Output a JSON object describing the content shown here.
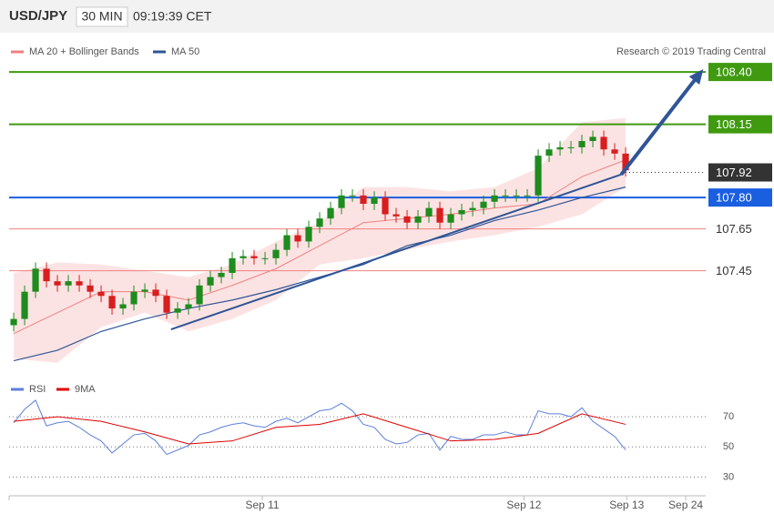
{
  "header": {
    "symbol": "USD/JPY",
    "interval": "30 MIN",
    "time": "09:19:39 CET"
  },
  "chart_data": [
    {
      "type": "candlestick",
      "source": "Research © 2019 Trading Central",
      "up_color": "#1e8c1e",
      "down_color": "#d81e1e",
      "x": [
        0,
        1,
        2,
        3,
        4,
        5,
        6,
        7,
        8,
        9,
        10,
        11,
        12,
        13,
        14,
        15,
        16,
        17,
        18,
        19,
        20,
        21,
        22,
        23,
        24,
        25,
        26,
        27,
        28,
        29,
        30,
        31,
        32,
        33,
        34,
        35,
        36,
        37,
        38,
        39,
        40,
        41,
        42,
        43,
        44,
        45,
        46,
        47,
        48,
        49,
        50,
        51,
        52,
        53,
        54,
        55,
        56
      ],
      "open": [
        107.19,
        107.22,
        107.35,
        107.46,
        107.4,
        107.38,
        107.4,
        107.38,
        107.35,
        107.33,
        107.27,
        107.29,
        107.35,
        107.36,
        107.33,
        107.25,
        107.27,
        107.29,
        107.38,
        107.42,
        107.44,
        107.51,
        107.52,
        107.51,
        107.51,
        107.55,
        107.62,
        107.59,
        107.66,
        107.7,
        107.75,
        107.81,
        107.81,
        107.77,
        107.8,
        107.72,
        107.71,
        107.68,
        107.71,
        107.75,
        107.68,
        107.72,
        107.74,
        107.75,
        107.78,
        107.81,
        107.81,
        107.81,
        107.81,
        108.0,
        108.03,
        108.04,
        108.04,
        108.07,
        108.09,
        108.03,
        108.01
      ],
      "high": [
        107.25,
        107.38,
        107.49,
        107.49,
        107.43,
        107.43,
        107.43,
        107.41,
        107.38,
        107.36,
        107.32,
        107.38,
        107.39,
        107.39,
        107.36,
        107.3,
        107.32,
        107.41,
        107.45,
        107.47,
        107.54,
        107.55,
        107.55,
        107.54,
        107.58,
        107.65,
        107.65,
        107.69,
        107.73,
        107.78,
        107.84,
        107.84,
        107.84,
        107.83,
        107.83,
        107.75,
        107.74,
        107.74,
        107.78,
        107.78,
        107.75,
        107.77,
        107.78,
        107.81,
        107.84,
        107.84,
        107.84,
        107.84,
        108.03,
        108.06,
        108.07,
        108.07,
        108.1,
        108.12,
        108.12,
        108.06,
        108.04
      ],
      "low": [
        107.16,
        107.19,
        107.32,
        107.37,
        107.35,
        107.35,
        107.35,
        107.32,
        107.3,
        107.24,
        107.24,
        107.26,
        107.32,
        107.3,
        107.22,
        107.22,
        107.24,
        107.26,
        107.35,
        107.39,
        107.41,
        107.48,
        107.48,
        107.48,
        107.48,
        107.52,
        107.56,
        107.56,
        107.63,
        107.67,
        107.72,
        107.78,
        107.74,
        107.74,
        107.69,
        107.68,
        107.65,
        107.65,
        107.68,
        107.65,
        107.65,
        107.69,
        107.71,
        107.72,
        107.75,
        107.78,
        107.78,
        107.78,
        107.78,
        107.97,
        108.0,
        108.01,
        108.01,
        108.04,
        108.0,
        107.98,
        107.9
      ],
      "close": [
        107.22,
        107.35,
        107.46,
        107.4,
        107.38,
        107.4,
        107.38,
        107.35,
        107.33,
        107.27,
        107.29,
        107.35,
        107.36,
        107.33,
        107.25,
        107.27,
        107.29,
        107.38,
        107.42,
        107.44,
        107.51,
        107.52,
        107.51,
        107.51,
        107.55,
        107.62,
        107.59,
        107.66,
        107.7,
        107.75,
        107.81,
        107.81,
        107.77,
        107.8,
        107.72,
        107.71,
        107.68,
        107.71,
        107.75,
        107.68,
        107.72,
        107.74,
        107.75,
        107.78,
        107.81,
        107.81,
        107.81,
        107.81,
        108.0,
        108.03,
        108.04,
        108.04,
        108.07,
        108.09,
        108.03,
        108.01,
        107.93
      ],
      "overlays": [
        {
          "name": "MA 20 + Bollinger Bands",
          "color": "#f08080",
          "x": [
            0,
            4,
            8,
            12,
            16,
            20,
            24,
            28,
            32,
            36,
            40,
            44,
            48,
            52,
            56
          ],
          "values": [
            107.15,
            107.25,
            107.35,
            107.35,
            107.31,
            107.38,
            107.46,
            107.57,
            107.68,
            107.7,
            107.72,
            107.75,
            107.77,
            107.9,
            107.98
          ],
          "upper": [
            107.44,
            107.49,
            107.48,
            107.45,
            107.42,
            107.48,
            107.59,
            107.68,
            107.85,
            107.85,
            107.83,
            107.85,
            107.94,
            108.16,
            108.18
          ],
          "lower": [
            107.03,
            107.01,
            107.18,
            107.25,
            107.16,
            107.22,
            107.31,
            107.48,
            107.51,
            107.55,
            107.59,
            107.62,
            107.66,
            107.72,
            107.85
          ]
        },
        {
          "name": "MA 50",
          "color": "#2f5597",
          "x": [
            0,
            4,
            8,
            12,
            16,
            20,
            24,
            28,
            32,
            36,
            40,
            44,
            48,
            52,
            56
          ],
          "values": [
            107.02,
            107.07,
            107.16,
            107.22,
            107.27,
            107.31,
            107.36,
            107.42,
            107.48,
            107.57,
            107.62,
            107.69,
            107.74,
            107.8,
            107.85
          ]
        }
      ],
      "trendline": {
        "color": "#2f5597",
        "x": [
          14.4,
          55.6
        ],
        "values": [
          107.17,
          107.91
        ]
      },
      "forecast": {
        "color": "#2f5597",
        "x": [
          55.6,
          62.9
        ],
        "values": [
          107.91,
          108.4
        ]
      },
      "levels": [
        {
          "value": 108.4,
          "label": "108.40",
          "color": "#3f9a0f",
          "boxed": true,
          "style": "solid"
        },
        {
          "value": 108.15,
          "label": "108.15",
          "color": "#3f9a0f",
          "boxed": true,
          "style": "solid"
        },
        {
          "value": 107.92,
          "label": "107.92",
          "color": "#333333",
          "boxed": true,
          "style": "dotted"
        },
        {
          "value": 107.8,
          "label": "107.80",
          "color": "#1a5fe0",
          "boxed": true,
          "style": "solid"
        },
        {
          "value": 107.65,
          "label": "107.65",
          "color": "#f08080",
          "boxed": false,
          "style": "solid"
        },
        {
          "value": 107.45,
          "label": "107.45",
          "color": "#f08080",
          "boxed": false,
          "style": "solid"
        }
      ],
      "xlim": [
        -0.42,
        63.33
      ],
      "ylim": [
        106.94,
        108.47
      ]
    },
    {
      "type": "line",
      "series": [
        {
          "name": "RSI",
          "color": "#5b7fdc",
          "x": [
            0,
            1,
            2,
            3,
            4,
            5,
            6,
            7,
            8,
            9,
            10,
            11,
            12,
            13,
            14,
            15,
            16,
            17,
            18,
            19,
            20,
            21,
            22,
            23,
            24,
            25,
            26,
            27,
            28,
            29,
            30,
            31,
            32,
            33,
            34,
            35,
            36,
            37,
            38,
            39,
            40,
            41,
            42,
            43,
            44,
            45,
            46,
            47,
            48,
            49,
            50,
            51,
            52,
            53,
            54,
            55,
            56
          ],
          "values": [
            66,
            75,
            81,
            64,
            66,
            67,
            63,
            58,
            54,
            46,
            52,
            58,
            59,
            54,
            45,
            48,
            51,
            58,
            60,
            63,
            65,
            66,
            64,
            63,
            67,
            69,
            66,
            70,
            74,
            75,
            79,
            74,
            65,
            63,
            55,
            52,
            53,
            58,
            59,
            48,
            57,
            55,
            55,
            58,
            58,
            60,
            58,
            58,
            74,
            72,
            72,
            70,
            76,
            67,
            62,
            57,
            48
          ]
        },
        {
          "name": "9MA",
          "color": "#e00000",
          "x": [
            0,
            4,
            8,
            12,
            16,
            20,
            24,
            28,
            32,
            36,
            40,
            44,
            48,
            52,
            56
          ],
          "values": [
            67,
            70,
            67,
            60,
            52,
            54,
            63,
            65,
            72,
            63,
            54,
            55,
            59,
            72,
            65
          ]
        }
      ],
      "xlim": [
        -0.42,
        63.33
      ],
      "ylim": [
        20,
        87
      ],
      "yticks": [
        30,
        50,
        70
      ],
      "xticks": [
        {
          "value": 22.75,
          "label": "Sep 11"
        },
        {
          "value": 46.7,
          "label": "Sep 12"
        },
        {
          "value": 56.1,
          "label": "Sep 13"
        },
        {
          "value": 61.5,
          "label": "Sep 24"
        }
      ]
    }
  ]
}
